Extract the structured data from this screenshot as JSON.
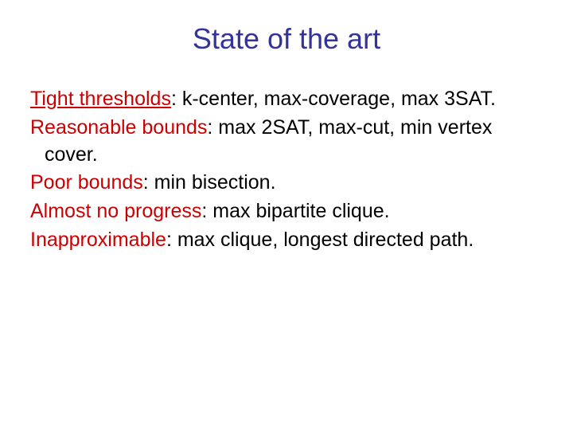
{
  "title": "State of the art",
  "items": [
    {
      "label": "Tight thresholds",
      "underline": true,
      "rest": ": k-center, max-coverage, max 3SAT."
    },
    {
      "label": "Reasonable bounds",
      "underline": false,
      "rest": ": max 2SAT, max-cut, min vertex cover."
    },
    {
      "label": "Poor bounds",
      "underline": false,
      "rest": ": min bisection."
    },
    {
      "label": "Almost no progress",
      "underline": false,
      "rest": ": max bipartite clique."
    },
    {
      "label": "Inapproximable",
      "underline": false,
      "rest": ": max clique, longest directed path."
    }
  ],
  "colors": {
    "title": "#333399",
    "label": "#cc0000",
    "text": "#000000",
    "background": "#ffffff"
  },
  "typography": {
    "title_fontsize": 36,
    "body_fontsize": 25,
    "font_family": "Arial"
  }
}
